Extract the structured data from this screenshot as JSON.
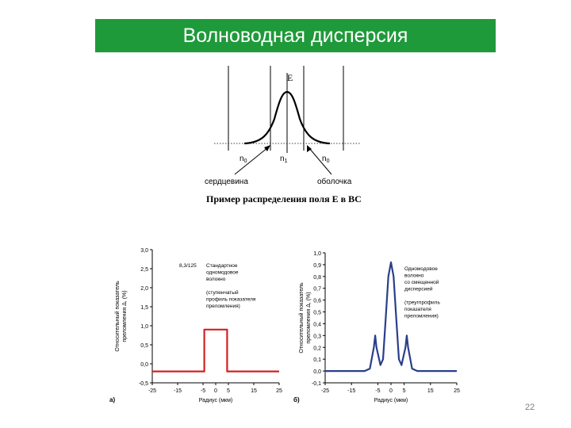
{
  "slide": {
    "title": "Волноводная дисперсия",
    "page_number": "22",
    "colors": {
      "title_bg": "#1f9a3a",
      "title_text": "#ffffff",
      "red_curve": "#d42020",
      "blue_curve": "#2a3f8a"
    }
  },
  "field_diagram": {
    "axis_label": "E",
    "n0_left": "n",
    "n0_left_sub": "0",
    "n1": "n",
    "n1_sub": "1",
    "n0_right": "n",
    "n0_right_sub": "0",
    "core_label": "сердцевина",
    "cladding_label": "оболочка",
    "caption": "Пример распределения поля E в ВС"
  },
  "chart_data": [
    {
      "type": "line",
      "panel_label": "а)",
      "xlabel": "Радиус (мкм)",
      "ylabel": "Относительный показатель преломления Δ, (%)",
      "ylabel_line1": "Относительный показатель",
      "ylabel_line2": "преломления Δ, (%)",
      "xlim": [
        -25,
        25
      ],
      "ylim": [
        -0.5,
        3.0
      ],
      "x_ticks": [
        "-25",
        "-15",
        "-5",
        "0",
        "5",
        "15",
        "25"
      ],
      "y_ticks": [
        "3,0",
        "2,5",
        "2,0",
        "1,5",
        "1,0",
        "0,5",
        "0,0",
        "-0,5"
      ],
      "grid": false,
      "annotation_tag": "8,3/125",
      "annotation_lines": [
        "Стандартное",
        "одномодовое",
        "волокно",
        "",
        "(ступенчатый",
        "профиль показателя",
        "преломления)"
      ],
      "series": [
        {
          "x": [
            -25,
            -4.5,
            -4.5,
            4.5,
            4.5,
            25
          ],
          "y": [
            -0.2,
            -0.2,
            0.9,
            0.9,
            -0.2,
            -0.2
          ]
        }
      ]
    },
    {
      "type": "line",
      "panel_label": "б)",
      "xlabel": "Радиус (мкм)",
      "ylabel": "Относительный показатель преломления Δ, (%)",
      "ylabel_line1": "Относительный показатель",
      "ylabel_line2": "преломления Δ, (%)",
      "xlim": [
        -25,
        25
      ],
      "ylim": [
        -0.1,
        1.0
      ],
      "x_ticks": [
        "-25",
        "-15",
        "-5",
        "0",
        "5",
        "15",
        "25"
      ],
      "y_ticks": [
        "1,0",
        "0,9",
        "0,8",
        "0,7",
        "0,6",
        "0,5",
        "0,4",
        "0,3",
        "0,2",
        "0,1",
        "0,0",
        "-0,1"
      ],
      "grid": false,
      "annotation_lines": [
        "Одномодовое",
        "волокно",
        "со смещенной",
        "дисперсией",
        "",
        "(треугпрофиль",
        "показателя",
        "преломления)"
      ],
      "series": [
        {
          "x": [
            -25,
            -10,
            -8,
            -6.5,
            -6,
            -5.5,
            -4,
            -3,
            -2,
            -1,
            0,
            1,
            2,
            3,
            4,
            5.5,
            6,
            6.5,
            8,
            10,
            25
          ],
          "y": [
            0.0,
            0.0,
            0.02,
            0.2,
            0.3,
            0.2,
            0.05,
            0.1,
            0.45,
            0.8,
            0.92,
            0.8,
            0.45,
            0.1,
            0.05,
            0.2,
            0.3,
            0.2,
            0.02,
            0.0,
            0.0
          ]
        }
      ]
    }
  ]
}
